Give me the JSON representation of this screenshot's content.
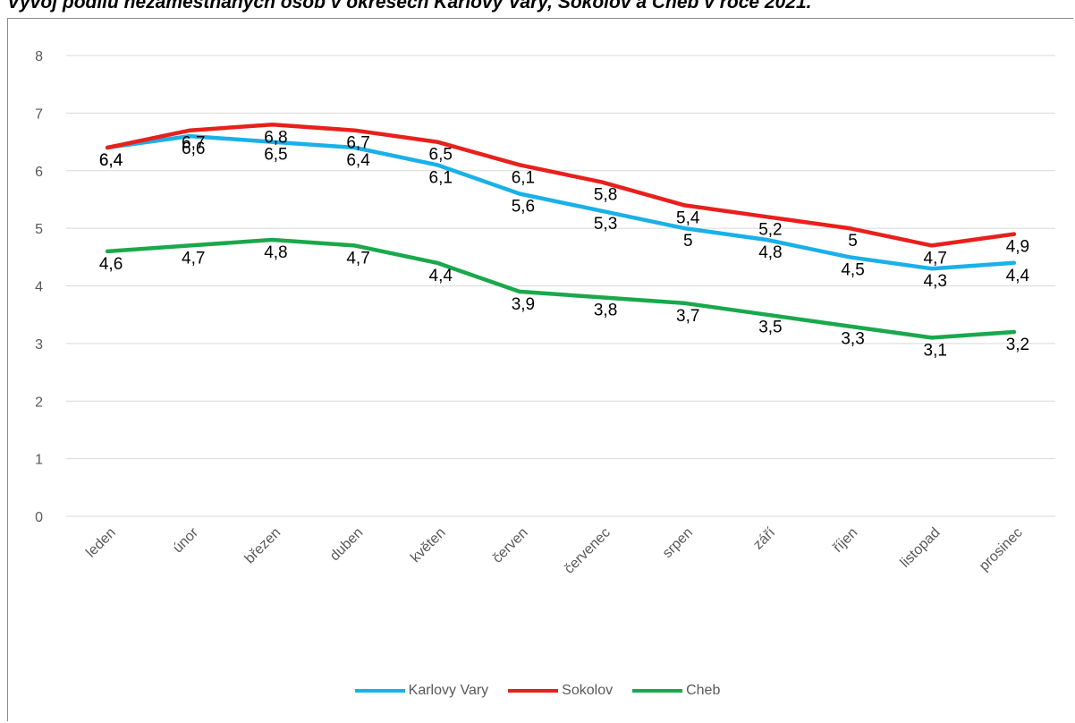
{
  "title": "Vývoj podílu nezaměstnaných osob v okresech Karlovy Vary, Sokolov a Cheb v roce 2021.",
  "chart_data": {
    "type": "line",
    "categories": [
      "leden",
      "únor",
      "březen",
      "duben",
      "květen",
      "červen",
      "červenec",
      "srpen",
      "září",
      "říjen",
      "listopad",
      "prosinec"
    ],
    "ylim": [
      0,
      8
    ],
    "yticks": [
      "0",
      "1",
      "2",
      "3",
      "4",
      "5",
      "6",
      "7",
      "8"
    ],
    "grid": true,
    "legend_position": "bottom",
    "series": [
      {
        "name": "Karlovy Vary",
        "color": "#1ab0e8",
        "values": [
          6.4,
          6.6,
          6.5,
          6.4,
          6.1,
          5.6,
          5.3,
          5.0,
          4.8,
          4.5,
          4.3,
          4.4
        ],
        "labels": [
          "6,4",
          "6,6",
          "6,5",
          "6,4",
          "6,1",
          "5,6",
          "5,3",
          "5",
          "4,8",
          "4,5",
          "4,3",
          "4,4"
        ]
      },
      {
        "name": "Sokolov",
        "color": "#e8201c",
        "values": [
          6.4,
          6.7,
          6.8,
          6.7,
          6.5,
          6.1,
          5.8,
          5.4,
          5.2,
          5.0,
          4.7,
          4.9
        ],
        "labels": [
          "6,4",
          "6,7",
          "6,8",
          "6,7",
          "6,5",
          "6,1",
          "5,8",
          "5,4",
          "5,2",
          "5",
          "4,7",
          "4,9"
        ]
      },
      {
        "name": "Cheb",
        "color": "#1aa84c",
        "values": [
          4.6,
          4.7,
          4.8,
          4.7,
          4.4,
          3.9,
          3.8,
          3.7,
          3.5,
          3.3,
          3.1,
          3.2
        ],
        "labels": [
          "4,6",
          "4,7",
          "4,8",
          "4,7",
          "4,4",
          "3,9",
          "3,8",
          "3,7",
          "3,5",
          "3,3",
          "3,1",
          "3,2"
        ]
      }
    ]
  }
}
